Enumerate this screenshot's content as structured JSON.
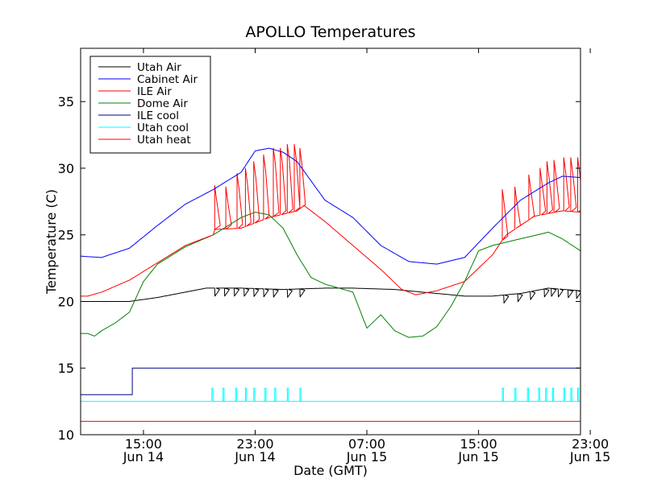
{
  "chart_data": {
    "type": "line",
    "title": "APOLLO Temperatures",
    "xlabel": "Date (GMT)",
    "ylabel": "Temperature (C)",
    "ylim": [
      10,
      39
    ],
    "xlim": [
      10.5,
      46.3
    ],
    "x_unit": "hours since Jun 14 00:00 GMT",
    "yticks": [
      10,
      15,
      20,
      25,
      30,
      35
    ],
    "xticks": [
      {
        "x": 15,
        "line1": "15:00",
        "line2": "Jun 14"
      },
      {
        "x": 23,
        "line1": "23:00",
        "line2": "Jun 14"
      },
      {
        "x": 31,
        "line1": "07:00",
        "line2": "Jun 15"
      },
      {
        "x": 39,
        "line1": "15:00",
        "line2": "Jun 15"
      },
      {
        "x": 47,
        "line1": "23:00",
        "line2": "Jun 15"
      }
    ],
    "legend_position": "top-left",
    "series": [
      {
        "name": "Utah Air",
        "color": "#000000",
        "x": [
          10.5,
          12,
          14,
          16,
          18,
          19.5,
          22,
          25,
          28,
          30,
          33,
          36,
          38,
          40,
          42,
          44,
          46.3
        ],
        "y": [
          20.0,
          20.0,
          20.0,
          20.3,
          20.7,
          21.0,
          21.0,
          20.9,
          21.0,
          21.0,
          20.9,
          20.6,
          20.4,
          20.4,
          20.6,
          21.0,
          20.8
        ],
        "dips": [
          20.1,
          20.8,
          21.5,
          22.2,
          22.9,
          23.6,
          24.3,
          25.3,
          26.2,
          40.8,
          41.8,
          42.7,
          43.7,
          44.2,
          44.7,
          45.4,
          46.0
        ],
        "dip_depth": 0.6
      },
      {
        "name": "Cabinet Air",
        "color": "#0000ff",
        "x": [
          10.5,
          12,
          14,
          16,
          18,
          20,
          22,
          23,
          24,
          25,
          26,
          28,
          30,
          32,
          34,
          36,
          38,
          40,
          42,
          44,
          45,
          46.3
        ],
        "y": [
          23.4,
          23.3,
          24.0,
          25.7,
          27.3,
          28.4,
          29.7,
          31.3,
          31.5,
          31.2,
          30.5,
          27.6,
          26.3,
          24.2,
          23.0,
          22.8,
          23.3,
          25.5,
          27.6,
          28.9,
          29.4,
          29.3
        ]
      },
      {
        "name": "ILE Air",
        "color": "#ff0000",
        "x": [
          10.5,
          11,
          12,
          14,
          16,
          18,
          20,
          20.1,
          22,
          24,
          26,
          26.5,
          28,
          30,
          32,
          33.5,
          34.5,
          36,
          38,
          40,
          40.7,
          41,
          43,
          45,
          46.3
        ],
        "y": [
          20.4,
          20.4,
          20.7,
          21.6,
          22.9,
          24.2,
          25.0,
          25.4,
          25.5,
          26.3,
          26.8,
          27.2,
          26.0,
          24.2,
          22.4,
          20.9,
          20.5,
          20.8,
          21.5,
          23.5,
          24.6,
          25.0,
          26.4,
          26.8,
          26.7
        ],
        "spikes": [
          {
            "x": 20.1,
            "y": 28.7
          },
          {
            "x": 20.9,
            "y": 28.6
          },
          {
            "x": 21.7,
            "y": 29.6
          },
          {
            "x": 22.3,
            "y": 30.0
          },
          {
            "x": 22.9,
            "y": 30.5
          },
          {
            "x": 23.6,
            "y": 31.0
          },
          {
            "x": 24.3,
            "y": 31.5
          },
          {
            "x": 24.8,
            "y": 31.5
          },
          {
            "x": 25.3,
            "y": 31.8
          },
          {
            "x": 25.8,
            "y": 31.8
          },
          {
            "x": 26.2,
            "y": 31.5
          },
          {
            "x": 40.7,
            "y": 28.4
          },
          {
            "x": 41.6,
            "y": 28.6
          },
          {
            "x": 42.6,
            "y": 29.5
          },
          {
            "x": 43.4,
            "y": 30.0
          },
          {
            "x": 43.9,
            "y": 30.5
          },
          {
            "x": 44.4,
            "y": 30.6
          },
          {
            "x": 45.1,
            "y": 30.8
          },
          {
            "x": 45.6,
            "y": 30.8
          },
          {
            "x": 46.1,
            "y": 30.8
          }
        ]
      },
      {
        "name": "Dome Air",
        "color": "#008000",
        "x": [
          10.5,
          11,
          11.5,
          12,
          13,
          14,
          15,
          16,
          18,
          20,
          22,
          23,
          24,
          25,
          26,
          27,
          28,
          29,
          30,
          31,
          32,
          33,
          34,
          35,
          36,
          37,
          38,
          39,
          40,
          42,
          44,
          45,
          46.3
        ],
        "y": [
          17.6,
          17.6,
          17.4,
          17.8,
          18.4,
          19.2,
          21.5,
          22.8,
          24.1,
          25.0,
          26.3,
          26.7,
          26.5,
          25.5,
          23.5,
          21.8,
          21.3,
          21.0,
          20.7,
          18.0,
          19.0,
          17.8,
          17.3,
          17.4,
          18.1,
          19.6,
          21.5,
          23.8,
          24.2,
          24.7,
          25.2,
          24.7,
          23.8
        ]
      },
      {
        "name": "ILE cool",
        "color": "#000080",
        "x": [
          10.5,
          14.2,
          14.2,
          46.3
        ],
        "y": [
          13.0,
          13.0,
          15.0,
          15.0
        ]
      },
      {
        "name": "Utah cool",
        "color": "#00ffff",
        "x": [
          10.5,
          46.3
        ],
        "y": [
          12.5,
          12.5
        ],
        "spikes": [
          19.9,
          20.7,
          21.6,
          22.3,
          22.9,
          23.7,
          24.4,
          25.3,
          26.2,
          40.7,
          41.6,
          42.5,
          43.3,
          43.8,
          44.3,
          45.1,
          45.6,
          46.1
        ],
        "spike_height": 13.5
      },
      {
        "name": "Utah heat",
        "color": "#ff0000",
        "x": [
          10.5,
          46.3
        ],
        "y": [
          11.0,
          11.0
        ]
      }
    ]
  }
}
